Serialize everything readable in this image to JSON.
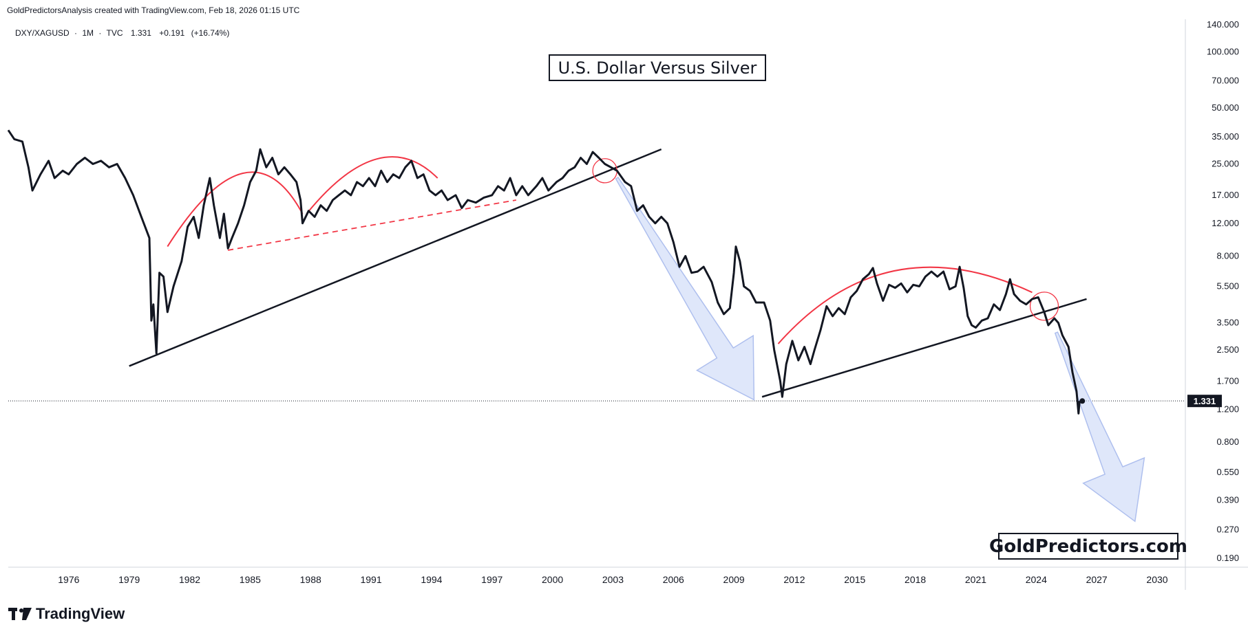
{
  "header": {
    "credit": "GoldPredictorsAnalysis created with TradingView.com, Feb 18, 2026 01:15 UTC"
  },
  "branding": {
    "logo_text": "TradingView"
  },
  "colors": {
    "price_line": "#131722",
    "red_annotation": "#f23645",
    "arrow_fill": "#c5d3f5",
    "arrow_stroke": "#aebfee",
    "price_label_bg": "#131722",
    "axis_border": "#d1d4dc"
  },
  "chart_data": {
    "type": "line",
    "symbol": "DXY/XAGUSD",
    "legend": {
      "symbol": "DXY/XAGUSD",
      "interval": "1M",
      "source": "TVC",
      "last": "1.331",
      "change": "+0.191",
      "change_pct": "(+16.74%)"
    },
    "title": "U.S. Dollar Versus Silver",
    "watermark": "GoldPredictors.com",
    "y_scale": "log",
    "ylim": [
      0.17,
      150
    ],
    "xlim": [
      1973.0,
      2031.4
    ],
    "y_ticks": [
      {
        "value": 140,
        "label": "140.000"
      },
      {
        "value": 100,
        "label": "100.000"
      },
      {
        "value": 70,
        "label": "70.000"
      },
      {
        "value": 50,
        "label": "50.000"
      },
      {
        "value": 35,
        "label": "35.000"
      },
      {
        "value": 25,
        "label": "25.000"
      },
      {
        "value": 17,
        "label": "17.000"
      },
      {
        "value": 12,
        "label": "12.000"
      },
      {
        "value": 8,
        "label": "8.000"
      },
      {
        "value": 5.5,
        "label": "5.500"
      },
      {
        "value": 3.5,
        "label": "3.500"
      },
      {
        "value": 2.5,
        "label": "2.500"
      },
      {
        "value": 1.7,
        "label": "1.700"
      },
      {
        "value": 1.2,
        "label": "1.200"
      },
      {
        "value": 0.8,
        "label": "0.800"
      },
      {
        "value": 0.55,
        "label": "0.550"
      },
      {
        "value": 0.39,
        "label": "0.390"
      },
      {
        "value": 0.27,
        "label": "0.270"
      },
      {
        "value": 0.19,
        "label": "0.190"
      }
    ],
    "x_ticks": [
      {
        "value": 1976,
        "label": "1976"
      },
      {
        "value": 1979,
        "label": "1979"
      },
      {
        "value": 1982,
        "label": "1982"
      },
      {
        "value": 1985,
        "label": "1985"
      },
      {
        "value": 1988,
        "label": "1988"
      },
      {
        "value": 1991,
        "label": "1991"
      },
      {
        "value": 1994,
        "label": "1994"
      },
      {
        "value": 1997,
        "label": "1997"
      },
      {
        "value": 2000,
        "label": "2000"
      },
      {
        "value": 2003,
        "label": "2003"
      },
      {
        "value": 2006,
        "label": "2006"
      },
      {
        "value": 2009,
        "label": "2009"
      },
      {
        "value": 2012,
        "label": "2012"
      },
      {
        "value": 2015,
        "label": "2015"
      },
      {
        "value": 2018,
        "label": "2018"
      },
      {
        "value": 2021,
        "label": "2021"
      },
      {
        "value": 2024,
        "label": "2024"
      },
      {
        "value": 2027,
        "label": "2027"
      },
      {
        "value": 2030,
        "label": "2030"
      }
    ],
    "current_price": {
      "value": 1.331,
      "label": "1.331"
    },
    "series": [
      {
        "name": "DXY/XAGUSD",
        "points": [
          [
            1973.0,
            38
          ],
          [
            1973.3,
            34
          ],
          [
            1973.7,
            33
          ],
          [
            1974.0,
            24
          ],
          [
            1974.2,
            18
          ],
          [
            1974.6,
            22
          ],
          [
            1975.0,
            26
          ],
          [
            1975.3,
            21
          ],
          [
            1975.7,
            23
          ],
          [
            1976.0,
            22
          ],
          [
            1976.4,
            25
          ],
          [
            1976.8,
            27
          ],
          [
            1977.2,
            25
          ],
          [
            1977.6,
            26
          ],
          [
            1978.0,
            24
          ],
          [
            1978.4,
            25
          ],
          [
            1978.8,
            21
          ],
          [
            1979.2,
            17
          ],
          [
            1979.6,
            13
          ],
          [
            1980.0,
            10
          ],
          [
            1980.1,
            3.6
          ],
          [
            1980.2,
            4.4
          ],
          [
            1980.35,
            2.4
          ],
          [
            1980.5,
            6.5
          ],
          [
            1980.7,
            6.2
          ],
          [
            1980.9,
            4.0
          ],
          [
            1981.2,
            5.5
          ],
          [
            1981.6,
            7.5
          ],
          [
            1981.9,
            11.5
          ],
          [
            1982.2,
            13
          ],
          [
            1982.45,
            10
          ],
          [
            1982.7,
            15
          ],
          [
            1983.0,
            21
          ],
          [
            1983.2,
            15
          ],
          [
            1983.5,
            10
          ],
          [
            1983.7,
            13.5
          ],
          [
            1983.9,
            8.8
          ],
          [
            1984.1,
            10
          ],
          [
            1984.4,
            12
          ],
          [
            1984.7,
            15
          ],
          [
            1985.0,
            20
          ],
          [
            1985.3,
            23
          ],
          [
            1985.5,
            30
          ],
          [
            1985.8,
            24
          ],
          [
            1986.1,
            27
          ],
          [
            1986.4,
            22
          ],
          [
            1986.7,
            24
          ],
          [
            1987.0,
            22
          ],
          [
            1987.3,
            20
          ],
          [
            1987.5,
            16
          ],
          [
            1987.6,
            12
          ],
          [
            1987.9,
            14
          ],
          [
            1988.2,
            13
          ],
          [
            1988.5,
            15
          ],
          [
            1988.8,
            14
          ],
          [
            1989.1,
            16
          ],
          [
            1989.4,
            17
          ],
          [
            1989.7,
            18
          ],
          [
            1990.0,
            17
          ],
          [
            1990.3,
            20
          ],
          [
            1990.6,
            19
          ],
          [
            1990.9,
            21
          ],
          [
            1991.2,
            19
          ],
          [
            1991.5,
            23
          ],
          [
            1991.8,
            20
          ],
          [
            1992.1,
            22
          ],
          [
            1992.4,
            21
          ],
          [
            1992.7,
            24
          ],
          [
            1993.0,
            26
          ],
          [
            1993.3,
            21
          ],
          [
            1993.6,
            22
          ],
          [
            1993.9,
            18
          ],
          [
            1994.2,
            17
          ],
          [
            1994.5,
            18
          ],
          [
            1994.8,
            16
          ],
          [
            1995.2,
            17
          ],
          [
            1995.5,
            14.5
          ],
          [
            1995.8,
            16
          ],
          [
            1996.2,
            15.5
          ],
          [
            1996.6,
            16.5
          ],
          [
            1997.0,
            17
          ],
          [
            1997.3,
            19
          ],
          [
            1997.6,
            18
          ],
          [
            1997.9,
            21
          ],
          [
            1998.2,
            17
          ],
          [
            1998.5,
            19
          ],
          [
            1998.8,
            17
          ],
          [
            1999.2,
            19
          ],
          [
            1999.5,
            21
          ],
          [
            1999.8,
            18
          ],
          [
            2000.2,
            20
          ],
          [
            2000.5,
            21
          ],
          [
            2000.8,
            23
          ],
          [
            2001.1,
            24
          ],
          [
            2001.4,
            27
          ],
          [
            2001.7,
            25
          ],
          [
            2002.0,
            29
          ],
          [
            2002.3,
            27
          ],
          [
            2002.6,
            25
          ],
          [
            2002.9,
            24
          ],
          [
            2003.2,
            23
          ],
          [
            2003.6,
            20
          ],
          [
            2003.9,
            19
          ],
          [
            2004.2,
            14
          ],
          [
            2004.5,
            15
          ],
          [
            2004.8,
            13
          ],
          [
            2005.1,
            12
          ],
          [
            2005.4,
            13
          ],
          [
            2005.7,
            12
          ],
          [
            2006.0,
            9.5
          ],
          [
            2006.3,
            7
          ],
          [
            2006.6,
            8
          ],
          [
            2006.9,
            6.5
          ],
          [
            2007.2,
            6.6
          ],
          [
            2007.5,
            7
          ],
          [
            2007.9,
            5.8
          ],
          [
            2008.2,
            4.5
          ],
          [
            2008.5,
            3.9
          ],
          [
            2008.8,
            4.2
          ],
          [
            2009.0,
            6.5
          ],
          [
            2009.1,
            9
          ],
          [
            2009.3,
            7.5
          ],
          [
            2009.5,
            5.5
          ],
          [
            2009.8,
            5.2
          ],
          [
            2010.1,
            4.5
          ],
          [
            2010.5,
            4.5
          ],
          [
            2010.8,
            3.6
          ],
          [
            2011.0,
            2.5
          ],
          [
            2011.3,
            1.7
          ],
          [
            2011.4,
            1.4
          ],
          [
            2011.6,
            2.1
          ],
          [
            2011.9,
            2.8
          ],
          [
            2012.2,
            2.2
          ],
          [
            2012.5,
            2.6
          ],
          [
            2012.8,
            2.1
          ],
          [
            2013.0,
            2.5
          ],
          [
            2013.3,
            3.2
          ],
          [
            2013.6,
            4.3
          ],
          [
            2013.9,
            3.8
          ],
          [
            2014.2,
            4.2
          ],
          [
            2014.5,
            3.9
          ],
          [
            2014.8,
            4.8
          ],
          [
            2015.1,
            5.2
          ],
          [
            2015.4,
            6.0
          ],
          [
            2015.7,
            6.4
          ],
          [
            2015.9,
            6.9
          ],
          [
            2016.1,
            5.7
          ],
          [
            2016.4,
            4.6
          ],
          [
            2016.7,
            5.6
          ],
          [
            2017.0,
            5.4
          ],
          [
            2017.3,
            5.7
          ],
          [
            2017.6,
            5.1
          ],
          [
            2017.9,
            5.6
          ],
          [
            2018.2,
            5.5
          ],
          [
            2018.5,
            6.2
          ],
          [
            2018.8,
            6.6
          ],
          [
            2019.1,
            6.2
          ],
          [
            2019.4,
            6.6
          ],
          [
            2019.7,
            5.3
          ],
          [
            2020.0,
            5.5
          ],
          [
            2020.2,
            7.0
          ],
          [
            2020.4,
            5.4
          ],
          [
            2020.6,
            3.8
          ],
          [
            2020.8,
            3.4
          ],
          [
            2021.0,
            3.3
          ],
          [
            2021.3,
            3.6
          ],
          [
            2021.6,
            3.7
          ],
          [
            2021.9,
            4.4
          ],
          [
            2022.2,
            4.1
          ],
          [
            2022.5,
            5.0
          ],
          [
            2022.7,
            6.0
          ],
          [
            2022.9,
            5.0
          ],
          [
            2023.2,
            4.6
          ],
          [
            2023.5,
            4.4
          ],
          [
            2023.8,
            4.7
          ],
          [
            2024.1,
            4.8
          ],
          [
            2024.4,
            4.0
          ],
          [
            2024.6,
            3.4
          ],
          [
            2024.9,
            3.7
          ],
          [
            2025.1,
            3.5
          ],
          [
            2025.3,
            3.0
          ],
          [
            2025.6,
            2.6
          ],
          [
            2025.8,
            1.9
          ],
          [
            2026.0,
            1.5
          ],
          [
            2026.1,
            1.14
          ],
          [
            2026.15,
            1.33
          ]
        ]
      }
    ],
    "annotations": {
      "red_arcs": [
        {
          "from": [
            1980.9,
            9
          ],
          "control": [
            1985.0,
            45
          ],
          "to": [
            1987.6,
            13.5
          ]
        },
        {
          "from": [
            1987.8,
            13.5
          ],
          "control": [
            1991.5,
            42
          ],
          "to": [
            1994.3,
            21
          ]
        },
        {
          "from": [
            2011.2,
            2.7
          ],
          "control": [
            2016.5,
            12
          ],
          "to": [
            2023.8,
            5.1
          ]
        }
      ],
      "red_dashed_line": {
        "from": [
          1983.9,
          8.6
        ],
        "to": [
          1998.2,
          16
        ]
      },
      "trendlines": [
        {
          "from": [
            1979.0,
            2.05
          ],
          "to": [
            2005.4,
            30
          ]
        },
        {
          "from": [
            2010.4,
            1.4
          ],
          "to": [
            2026.5,
            4.7
          ]
        }
      ],
      "circles": [
        {
          "center": [
            2002.6,
            23
          ],
          "radius_years": 0.6
        },
        {
          "center": [
            2024.4,
            4.3
          ],
          "radius_years": 0.7
        }
      ],
      "arrows": [
        {
          "from": [
            2003.2,
            21
          ],
          "to": [
            2010.0,
            1.35
          ]
        },
        {
          "from": [
            2025.0,
            3.1
          ],
          "to": [
            2028.9,
            0.3
          ]
        }
      ]
    }
  }
}
